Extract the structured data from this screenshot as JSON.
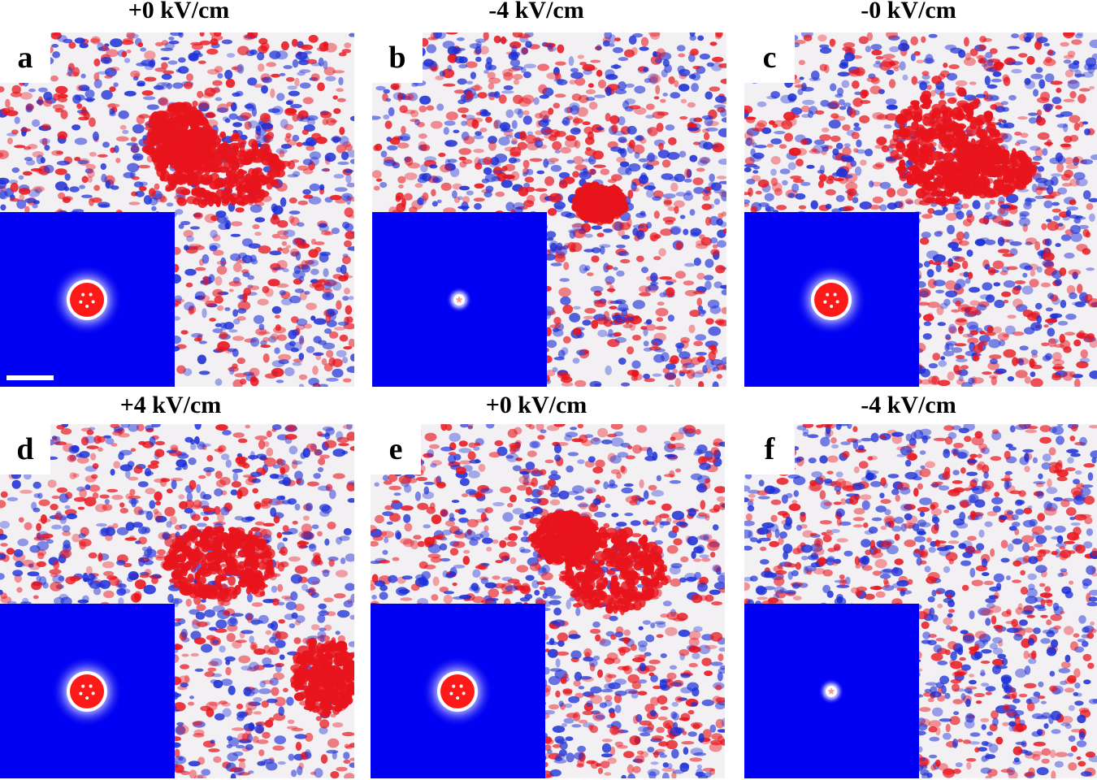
{
  "figure": {
    "panels": [
      {
        "id": "a",
        "letter": "a",
        "title": "+0 kV/cm",
        "core": "large",
        "scale_bar": true
      },
      {
        "id": "b",
        "letter": "b",
        "title": "-4 kV/cm",
        "core": "small",
        "scale_bar": false
      },
      {
        "id": "c",
        "letter": "c",
        "title": "-0 kV/cm",
        "core": "large",
        "scale_bar": false
      },
      {
        "id": "d",
        "letter": "d",
        "title": "+4 kV/cm",
        "core": "large",
        "scale_bar": false
      },
      {
        "id": "e",
        "letter": "e",
        "title": "+0 kV/cm",
        "core": "large",
        "scale_bar": false
      },
      {
        "id": "f",
        "letter": "f",
        "title": "-4 kV/cm",
        "core": "small",
        "scale_bar": false
      }
    ],
    "colors": {
      "positive": "#e8141c",
      "negative": "#1c2fd6",
      "inset_background": "#0000f2",
      "inset_core": "#ff1a1a"
    }
  }
}
